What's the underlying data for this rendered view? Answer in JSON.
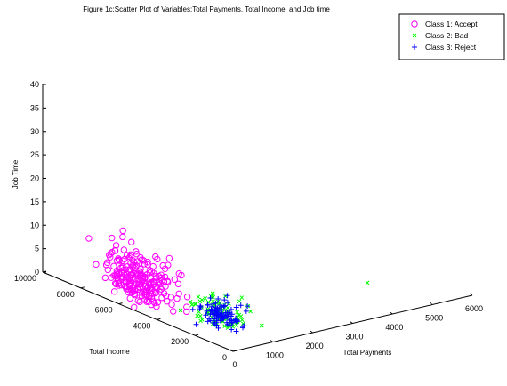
{
  "chart_data": {
    "type": "scatter",
    "title": "Figure 1c:Scatter Plot of Variables:Total Payments, Total Income, and Job time",
    "xlabel": "Total Payments",
    "ylabel": "Total Income",
    "zlabel": "Job Time",
    "xlim": [
      0,
      6000
    ],
    "ylim": [
      0,
      10000
    ],
    "zlim": [
      0,
      40
    ],
    "x_ticks": [
      "0",
      "1000",
      "2000",
      "3000",
      "4000",
      "5000",
      "6000"
    ],
    "y_ticks": [
      "0",
      "2000",
      "4000",
      "6000",
      "8000",
      "10000"
    ],
    "z_ticks": [
      "0",
      "5",
      "10",
      "15",
      "20",
      "25",
      "30",
      "35",
      "40"
    ],
    "legend_position": "top-right",
    "series": [
      {
        "name": "Class 1: Accept",
        "marker": "circle",
        "color": "#ff00ff"
      },
      {
        "name": "Class 2: Bad",
        "marker": "x",
        "color": "#00ff00"
      },
      {
        "name": "Class 3: Reject",
        "marker": "plus",
        "color": "#0000ff"
      }
    ]
  }
}
